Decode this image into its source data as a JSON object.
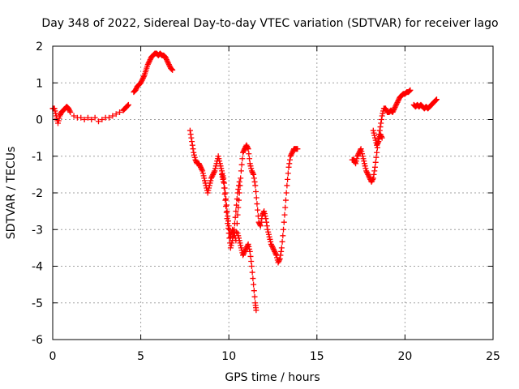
{
  "chart_data": {
    "type": "scatter",
    "title": "Day 348 of 2022, Sidereal Day-to-day VTEC variation (SDTVAR) for receiver lago",
    "xlabel": "GPS time / hours",
    "ylabel": "SDTVAR / TECUs",
    "xlim": [
      0,
      25
    ],
    "ylim": [
      -6,
      2
    ],
    "xticks": [
      "0",
      "5",
      "10",
      "15",
      "20",
      "25"
    ],
    "yticks": [
      "2",
      "1",
      "0",
      "-1",
      "-2",
      "-3",
      "-4",
      "-5",
      "-6"
    ],
    "grid": true,
    "marker": "plus",
    "color": "#ff0000",
    "series": [
      {
        "points": [
          [
            0.0,
            0.3
          ],
          [
            0.1,
            0.3
          ],
          [
            0.2,
            0.1
          ],
          [
            0.3,
            -0.1
          ],
          [
            0.4,
            0.1
          ],
          [
            0.5,
            0.2
          ],
          [
            0.6,
            0.25
          ],
          [
            0.7,
            0.3
          ],
          [
            0.8,
            0.35
          ],
          [
            0.9,
            0.3
          ],
          [
            1.0,
            0.2
          ],
          [
            1.2,
            0.1
          ],
          [
            1.4,
            0.05
          ],
          [
            1.6,
            0.05
          ],
          [
            1.8,
            0.0
          ],
          [
            2.0,
            0.05
          ],
          [
            2.2,
            0.0
          ],
          [
            2.4,
            0.05
          ],
          [
            2.6,
            -0.05
          ],
          [
            2.8,
            0.0
          ],
          [
            3.0,
            0.05
          ],
          [
            3.2,
            0.05
          ],
          [
            3.4,
            0.1
          ],
          [
            3.6,
            0.15
          ],
          [
            3.8,
            0.2
          ],
          [
            4.0,
            0.25
          ],
          [
            4.1,
            0.3
          ],
          [
            4.2,
            0.35
          ],
          [
            4.3,
            0.4
          ]
        ]
      },
      {
        "points": [
          [
            4.6,
            0.75
          ],
          [
            4.7,
            0.8
          ],
          [
            4.8,
            0.9
          ],
          [
            4.9,
            0.95
          ],
          [
            5.0,
            1.0
          ],
          [
            5.1,
            1.1
          ],
          [
            5.2,
            1.2
          ],
          [
            5.3,
            1.35
          ],
          [
            5.4,
            1.5
          ],
          [
            5.5,
            1.6
          ],
          [
            5.6,
            1.7
          ],
          [
            5.7,
            1.75
          ],
          [
            5.8,
            1.8
          ],
          [
            5.9,
            1.8
          ],
          [
            6.0,
            1.75
          ],
          [
            6.1,
            1.8
          ],
          [
            6.2,
            1.75
          ],
          [
            6.3,
            1.75
          ],
          [
            6.4,
            1.7
          ],
          [
            6.5,
            1.6
          ],
          [
            6.6,
            1.5
          ],
          [
            6.7,
            1.4
          ],
          [
            6.8,
            1.35
          ]
        ]
      },
      {
        "points": [
          [
            7.8,
            -0.3
          ],
          [
            7.9,
            -0.6
          ],
          [
            8.0,
            -0.9
          ],
          [
            8.1,
            -1.1
          ],
          [
            8.2,
            -1.2
          ],
          [
            8.3,
            -1.2
          ],
          [
            8.4,
            -1.3
          ],
          [
            8.5,
            -1.4
          ],
          [
            8.6,
            -1.6
          ],
          [
            8.7,
            -1.8
          ],
          [
            8.8,
            -2.0
          ],
          [
            8.9,
            -1.8
          ],
          [
            9.0,
            -1.6
          ],
          [
            9.1,
            -1.5
          ],
          [
            9.2,
            -1.4
          ],
          [
            9.3,
            -1.2
          ],
          [
            9.4,
            -1.0
          ],
          [
            9.5,
            -1.2
          ],
          [
            9.6,
            -1.4
          ],
          [
            9.7,
            -1.6
          ],
          [
            9.8,
            -2.0
          ],
          [
            9.9,
            -2.5
          ],
          [
            10.0,
            -2.9
          ],
          [
            10.1,
            -3.2
          ],
          [
            10.2,
            -3.0
          ],
          [
            10.3,
            -3.1
          ],
          [
            10.4,
            -3.3
          ],
          [
            10.5,
            -2.6
          ],
          [
            10.6,
            -2.0
          ],
          [
            10.7,
            -1.4
          ],
          [
            10.8,
            -0.9
          ],
          [
            10.9,
            -0.8
          ],
          [
            11.0,
            -0.7
          ],
          [
            11.1,
            -0.8
          ],
          [
            11.2,
            -1.2
          ],
          [
            11.3,
            -1.4
          ],
          [
            11.4,
            -1.5
          ],
          [
            11.5,
            -1.8
          ],
          [
            11.6,
            -2.3
          ],
          [
            11.7,
            -2.8
          ],
          [
            11.8,
            -2.9
          ],
          [
            11.9,
            -2.6
          ],
          [
            12.0,
            -2.5
          ],
          [
            12.1,
            -2.7
          ],
          [
            12.2,
            -3.0
          ],
          [
            12.3,
            -3.2
          ],
          [
            12.4,
            -3.4
          ],
          [
            12.5,
            -3.5
          ],
          [
            12.6,
            -3.6
          ],
          [
            12.7,
            -3.7
          ],
          [
            12.8,
            -3.9
          ],
          [
            12.9,
            -3.8
          ],
          [
            13.0,
            -3.5
          ],
          [
            13.1,
            -3.0
          ],
          [
            13.2,
            -2.4
          ],
          [
            13.3,
            -1.8
          ],
          [
            13.4,
            -1.3
          ],
          [
            13.5,
            -1.0
          ],
          [
            13.6,
            -0.9
          ],
          [
            13.7,
            -0.8
          ],
          [
            13.8,
            -0.8
          ],
          [
            13.9,
            -0.8
          ],
          [
            10.5,
            -3.1
          ],
          [
            10.6,
            -3.3
          ],
          [
            10.7,
            -3.5
          ],
          [
            10.8,
            -3.7
          ],
          [
            10.9,
            -3.6
          ],
          [
            11.0,
            -3.5
          ],
          [
            11.1,
            -3.4
          ],
          [
            11.2,
            -3.6
          ],
          [
            11.3,
            -4.0
          ],
          [
            11.4,
            -4.5
          ],
          [
            11.5,
            -5.0
          ],
          [
            11.55,
            -5.2
          ],
          [
            9.6,
            -1.5
          ],
          [
            9.7,
            -1.7
          ],
          [
            9.8,
            -2.2
          ],
          [
            9.9,
            -2.7
          ],
          [
            10.0,
            -3.1
          ],
          [
            10.1,
            -3.5
          ],
          [
            10.2,
            -3.3
          ],
          [
            10.3,
            -3.0
          ],
          [
            10.4,
            -2.5
          ],
          [
            10.5,
            -2.0
          ],
          [
            10.6,
            -1.7
          ]
        ]
      },
      {
        "points": [
          [
            17.0,
            -1.1
          ],
          [
            17.1,
            -1.1
          ],
          [
            17.2,
            -1.2
          ],
          [
            17.3,
            -1.0
          ],
          [
            17.4,
            -0.9
          ],
          [
            17.5,
            -0.8
          ],
          [
            17.6,
            -1.0
          ],
          [
            17.7,
            -1.2
          ],
          [
            17.8,
            -1.4
          ],
          [
            17.9,
            -1.5
          ],
          [
            18.0,
            -1.6
          ],
          [
            18.1,
            -1.7
          ],
          [
            18.2,
            -1.6
          ],
          [
            18.3,
            -1.3
          ],
          [
            18.4,
            -0.9
          ],
          [
            18.5,
            -0.5
          ],
          [
            18.6,
            -0.2
          ],
          [
            18.7,
            0.1
          ],
          [
            18.8,
            0.3
          ],
          [
            18.9,
            0.3
          ],
          [
            19.0,
            0.2
          ],
          [
            19.1,
            0.2
          ],
          [
            19.2,
            0.25
          ],
          [
            19.3,
            0.2
          ],
          [
            19.4,
            0.3
          ],
          [
            19.5,
            0.4
          ],
          [
            19.6,
            0.5
          ],
          [
            19.7,
            0.6
          ],
          [
            19.8,
            0.65
          ],
          [
            19.9,
            0.7
          ],
          [
            20.0,
            0.7
          ],
          [
            20.1,
            0.75
          ],
          [
            20.2,
            0.75
          ],
          [
            20.3,
            0.8
          ],
          [
            18.2,
            -0.3
          ],
          [
            18.3,
            -0.5
          ],
          [
            18.4,
            -0.7
          ],
          [
            18.5,
            -0.6
          ],
          [
            18.6,
            -0.4
          ],
          [
            18.7,
            -0.5
          ]
        ]
      },
      {
        "points": [
          [
            20.5,
            0.4
          ],
          [
            20.6,
            0.35
          ],
          [
            20.7,
            0.4
          ],
          [
            20.8,
            0.35
          ],
          [
            20.9,
            0.4
          ],
          [
            21.0,
            0.35
          ],
          [
            21.1,
            0.3
          ],
          [
            21.2,
            0.35
          ],
          [
            21.3,
            0.3
          ],
          [
            21.4,
            0.35
          ],
          [
            21.5,
            0.4
          ],
          [
            21.6,
            0.45
          ],
          [
            21.7,
            0.5
          ],
          [
            21.8,
            0.55
          ]
        ]
      }
    ]
  }
}
